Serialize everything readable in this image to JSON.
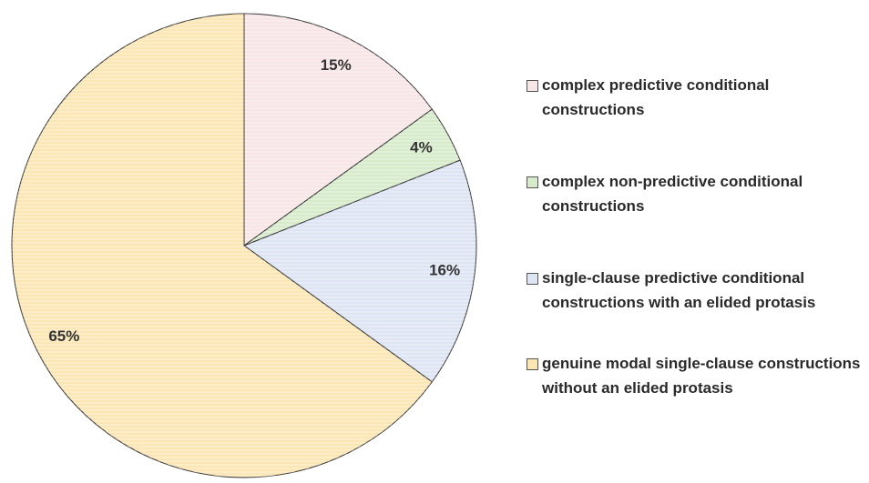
{
  "chart_data": {
    "type": "pie",
    "categories": [
      "complex predictive conditional constructions",
      "complex non-predictive conditional constructions",
      "single-clause predictive conditional constructions with an elided protasis",
      "genuine modal single-clause constructions without an elided protasis"
    ],
    "values": [
      15,
      4,
      16,
      65
    ],
    "value_labels": [
      "15%",
      "4%",
      "16%",
      "65%"
    ],
    "colors": [
      "#f8e6e6",
      "#d7ebcb",
      "#dde4f3",
      "#fbe6b4"
    ],
    "legend": "right"
  }
}
